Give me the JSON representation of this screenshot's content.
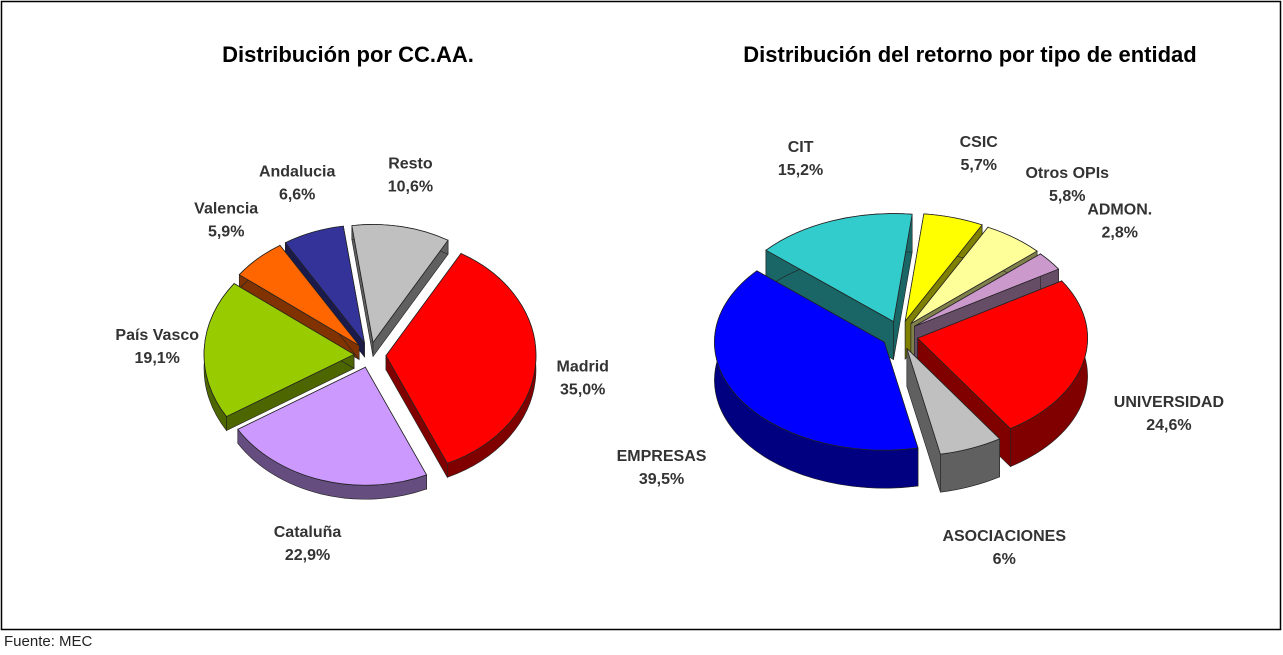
{
  "chart_data": [
    {
      "type": "pie",
      "title": "Distribución por CC.AA.",
      "categories": [
        "Madrid",
        "Cataluña",
        "País Vasco",
        "Valencia",
        "Andalucia",
        "Resto"
      ],
      "values": [
        35.0,
        22.9,
        19.1,
        5.9,
        6.6,
        10.6
      ],
      "value_labels": [
        "35,0%",
        "22,9%",
        "19,1%",
        "5,9%",
        "6,6%",
        "10,6%"
      ],
      "colors": [
        "#ff0000",
        "#cc99ff",
        "#99cc00",
        "#ff6600",
        "#333399",
        "#c0c0c0"
      ]
    },
    {
      "type": "pie",
      "title": "Distribución del retorno por tipo de entidad",
      "categories": [
        "UNIVERSIDAD",
        "ASOCIACIONES",
        "EMPRESAS",
        "CIT",
        "CSIC",
        "Otros OPIs",
        "ADMON."
      ],
      "values": [
        24.6,
        6,
        39.5,
        15.2,
        5.7,
        5.8,
        2.8
      ],
      "value_labels": [
        "24,6%",
        "6%",
        "39,5%",
        "15,2%",
        "5,7%",
        "5,8%",
        "2,8%"
      ],
      "colors": [
        "#ff0000",
        "#c0c0c0",
        "#0000ff",
        "#33cccc",
        "#ffff00",
        "#ffff99",
        "#cc99cc"
      ]
    }
  ],
  "source": "Fuente: MEC"
}
